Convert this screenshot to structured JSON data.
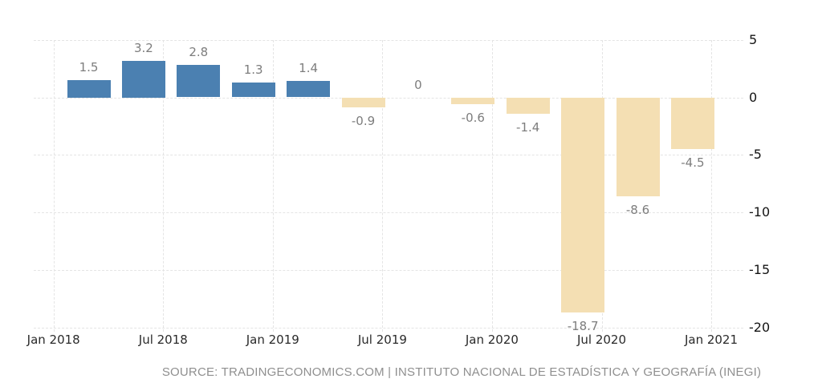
{
  "chart_data": {
    "type": "bar",
    "title": "",
    "values": [
      1.5,
      3.2,
      2.8,
      1.3,
      1.4,
      -0.9,
      0,
      -0.6,
      -1.4,
      -18.7,
      -8.6,
      -4.5
    ],
    "bar_value_labels": [
      "1.5",
      "3.2",
      "2.8",
      "1.3",
      "1.4",
      "-0.9",
      "0",
      "-0.6",
      "-1.4",
      "-18.7",
      "-8.6",
      "-4.5"
    ],
    "x_tick_labels": [
      "Jan 2018",
      "Jul 2018",
      "Jan 2019",
      "Jul 2019",
      "Jan 2020",
      "Jul 2020",
      "Jan 2021"
    ],
    "y_tick_labels": [
      "5",
      "0",
      "-5",
      "-10",
      "-15",
      "-20"
    ],
    "y_ticks": [
      5,
      0,
      -5,
      -10,
      -15,
      -20
    ],
    "ylim": [
      -20,
      5
    ],
    "grid": true,
    "legend_position": "none",
    "positive_color": "#4B80B1",
    "negative_color": "#F4DFB3",
    "value_label_color": "#7d7d7d",
    "axis_label_color": "#2a2a2a",
    "gridline_color": "#e4e4e4"
  },
  "footer": {
    "source_text": "SOURCE: TRADINGECONOMICS.COM | INSTITUTO NACIONAL DE ESTADÍSTICA Y GEOGRAFÍA (INEGI)"
  }
}
